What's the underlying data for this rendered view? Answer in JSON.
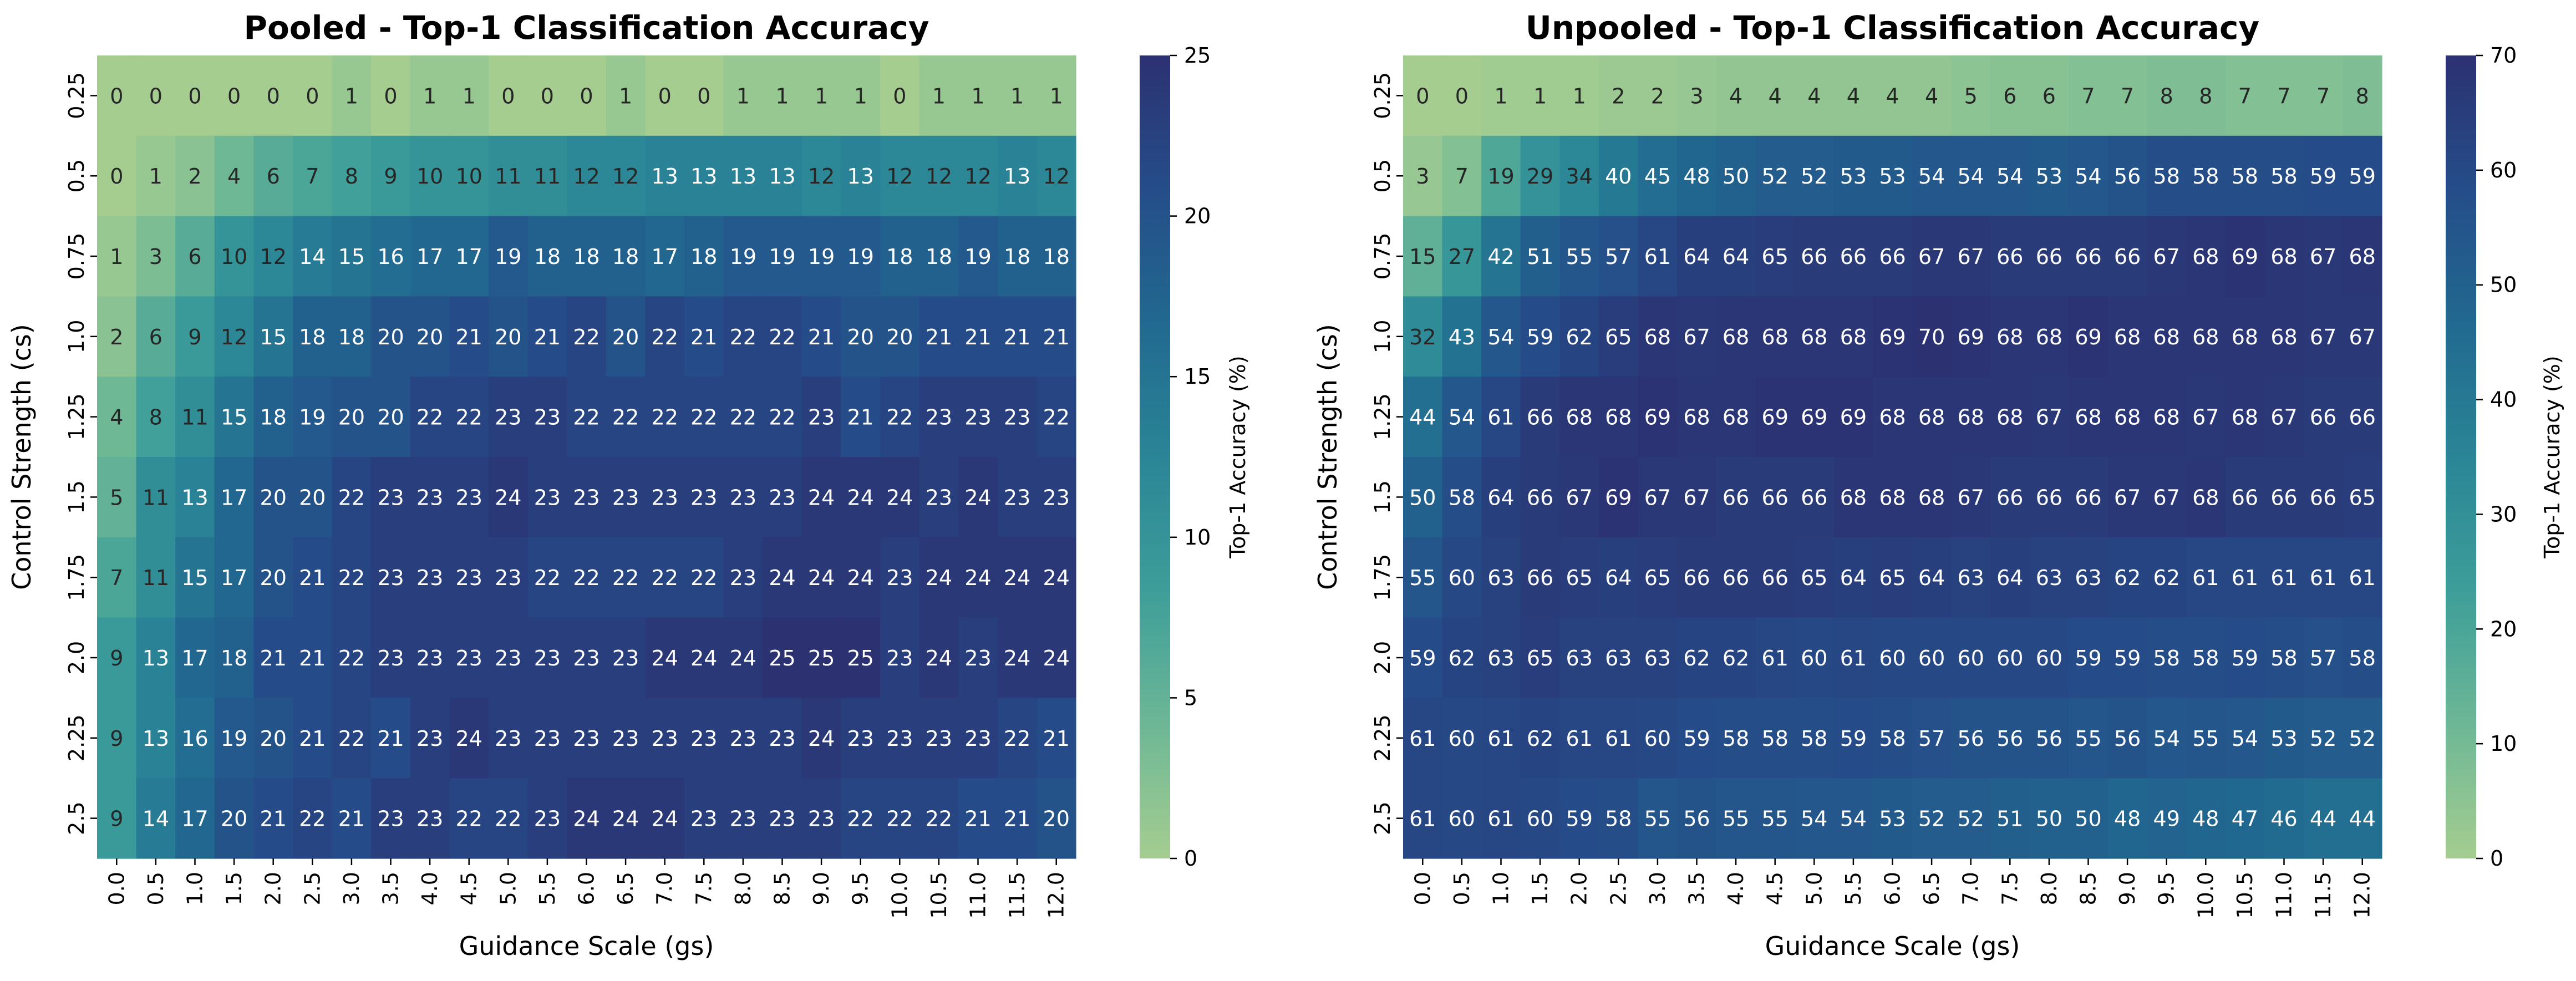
{
  "chart_data": [
    {
      "type": "heatmap",
      "title": "Pooled - Top-1 Classification Accuracy",
      "xlabel": "Guidance Scale (gs)",
      "ylabel": "Control Strength (cs)",
      "x_tick_labels": [
        "0.0",
        "0.5",
        "1.0",
        "1.5",
        "2.0",
        "2.5",
        "3.0",
        "3.5",
        "4.0",
        "4.5",
        "5.0",
        "5.5",
        "6.0",
        "6.5",
        "7.0",
        "7.5",
        "8.0",
        "8.5",
        "9.0",
        "9.5",
        "10.0",
        "10.5",
        "11.0",
        "11.5",
        "12.0"
      ],
      "y_tick_labels": [
        "0.25",
        "0.5",
        "0.75",
        "1.0",
        "1.25",
        "1.5",
        "1.75",
        "2.0",
        "2.25",
        "2.5"
      ],
      "values": [
        [
          0,
          0,
          0,
          0,
          0,
          0,
          1,
          0,
          1,
          1,
          0,
          0,
          0,
          1,
          0,
          0,
          1,
          1,
          1,
          1,
          0,
          1,
          1,
          1,
          1
        ],
        [
          0,
          1,
          2,
          4,
          6,
          7,
          8,
          9,
          10,
          10,
          11,
          11,
          12,
          12,
          13,
          13,
          13,
          13,
          12,
          13,
          12,
          12,
          12,
          13,
          12
        ],
        [
          1,
          3,
          6,
          10,
          12,
          14,
          15,
          16,
          17,
          17,
          19,
          18,
          18,
          18,
          17,
          18,
          19,
          19,
          19,
          19,
          18,
          18,
          19,
          18,
          18
        ],
        [
          2,
          6,
          9,
          12,
          15,
          18,
          18,
          20,
          20,
          21,
          20,
          21,
          22,
          20,
          22,
          21,
          22,
          22,
          21,
          20,
          20,
          21,
          21,
          21,
          21
        ],
        [
          4,
          8,
          11,
          15,
          18,
          19,
          20,
          20,
          22,
          22,
          23,
          23,
          22,
          22,
          22,
          22,
          22,
          22,
          23,
          21,
          22,
          23,
          23,
          23,
          22
        ],
        [
          5,
          11,
          13,
          17,
          20,
          20,
          22,
          23,
          23,
          23,
          24,
          23,
          23,
          23,
          23,
          23,
          23,
          23,
          24,
          24,
          24,
          23,
          24,
          23,
          23
        ],
        [
          7,
          11,
          15,
          17,
          20,
          21,
          22,
          23,
          23,
          23,
          23,
          22,
          22,
          22,
          22,
          22,
          23,
          24,
          24,
          24,
          23,
          24,
          24,
          24,
          24
        ],
        [
          9,
          13,
          17,
          18,
          21,
          21,
          22,
          23,
          23,
          23,
          23,
          23,
          23,
          23,
          24,
          24,
          24,
          25,
          25,
          25,
          23,
          24,
          23,
          24,
          24
        ],
        [
          9,
          13,
          16,
          19,
          20,
          21,
          22,
          21,
          23,
          24,
          23,
          23,
          23,
          23,
          23,
          23,
          23,
          23,
          24,
          23,
          23,
          23,
          23,
          22,
          21
        ],
        [
          9,
          14,
          17,
          20,
          21,
          22,
          21,
          23,
          23,
          22,
          22,
          23,
          24,
          24,
          24,
          23,
          23,
          23,
          23,
          22,
          22,
          22,
          21,
          21,
          20
        ]
      ],
      "vmin": 0,
      "vmax": 25,
      "colorbar": {
        "label": "Top-1 Accuracy (%)",
        "ticks": [
          0,
          5,
          10,
          15,
          20,
          25
        ]
      },
      "colormap": "crest",
      "color_stops": [
        "#a5cd90",
        "#6db796",
        "#3d9e99",
        "#2a8596",
        "#216990",
        "#254d89",
        "#2c3172"
      ]
    },
    {
      "type": "heatmap",
      "title": "Unpooled - Top-1 Classification Accuracy",
      "xlabel": "Guidance Scale (gs)",
      "ylabel": "Control Strength (cs)",
      "x_tick_labels": [
        "0.0",
        "0.5",
        "1.0",
        "1.5",
        "2.0",
        "2.5",
        "3.0",
        "3.5",
        "4.0",
        "4.5",
        "5.0",
        "5.5",
        "6.0",
        "6.5",
        "7.0",
        "7.5",
        "8.0",
        "8.5",
        "9.0",
        "9.5",
        "10.0",
        "10.5",
        "11.0",
        "11.5",
        "12.0"
      ],
      "y_tick_labels": [
        "0.25",
        "0.5",
        "0.75",
        "1.0",
        "1.25",
        "1.5",
        "1.75",
        "2.0",
        "2.25",
        "2.5"
      ],
      "values": [
        [
          0,
          0,
          1,
          1,
          1,
          2,
          2,
          3,
          4,
          4,
          4,
          4,
          4,
          4,
          5,
          6,
          6,
          7,
          7,
          8,
          8,
          7,
          7,
          7,
          8
        ],
        [
          3,
          7,
          19,
          29,
          34,
          40,
          45,
          48,
          50,
          52,
          52,
          53,
          53,
          54,
          54,
          54,
          53,
          54,
          56,
          58,
          58,
          58,
          58,
          59,
          59
        ],
        [
          15,
          27,
          42,
          51,
          55,
          57,
          61,
          64,
          64,
          65,
          66,
          66,
          66,
          67,
          67,
          66,
          66,
          66,
          66,
          67,
          68,
          69,
          68,
          67,
          68
        ],
        [
          32,
          43,
          54,
          59,
          62,
          65,
          68,
          67,
          68,
          68,
          68,
          68,
          69,
          70,
          69,
          68,
          68,
          69,
          68,
          68,
          68,
          68,
          68,
          67,
          67
        ],
        [
          44,
          54,
          61,
          66,
          68,
          68,
          69,
          68,
          68,
          69,
          69,
          69,
          68,
          68,
          68,
          68,
          67,
          68,
          68,
          68,
          67,
          68,
          67,
          66,
          66
        ],
        [
          50,
          58,
          64,
          66,
          67,
          69,
          67,
          67,
          66,
          66,
          66,
          68,
          68,
          68,
          67,
          66,
          66,
          66,
          67,
          67,
          68,
          66,
          66,
          66,
          65
        ],
        [
          55,
          60,
          63,
          66,
          65,
          64,
          65,
          66,
          66,
          66,
          65,
          64,
          65,
          64,
          63,
          64,
          63,
          63,
          62,
          62,
          61,
          61,
          61,
          61,
          61
        ],
        [
          59,
          62,
          63,
          65,
          63,
          63,
          63,
          62,
          62,
          61,
          60,
          61,
          60,
          60,
          60,
          60,
          60,
          59,
          59,
          58,
          58,
          59,
          58,
          57,
          58
        ],
        [
          61,
          60,
          61,
          62,
          61,
          61,
          60,
          59,
          58,
          58,
          58,
          59,
          58,
          57,
          56,
          56,
          56,
          55,
          56,
          54,
          55,
          54,
          53,
          52,
          52
        ],
        [
          61,
          60,
          61,
          60,
          59,
          58,
          55,
          56,
          55,
          55,
          54,
          54,
          53,
          52,
          52,
          51,
          50,
          50,
          48,
          49,
          48,
          47,
          46,
          44,
          44
        ]
      ],
      "vmin": 0,
      "vmax": 70,
      "colorbar": {
        "label": "Top-1 Accuracy (%)",
        "ticks": [
          0,
          10,
          20,
          30,
          40,
          50,
          60,
          70
        ]
      },
      "colormap": "crest",
      "color_stops": [
        "#a5cd90",
        "#6db796",
        "#3d9e99",
        "#2a8596",
        "#216990",
        "#254d89",
        "#2c3172"
      ]
    }
  ]
}
